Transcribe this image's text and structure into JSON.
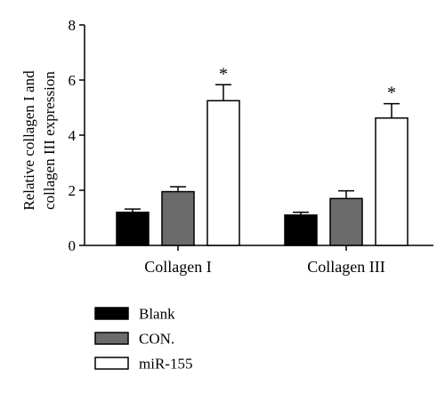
{
  "chart_data": {
    "type": "bar",
    "categories": [
      "Collagen I",
      "Collagen III"
    ],
    "series": [
      {
        "name": "Blank",
        "values": [
          1.2,
          1.1
        ],
        "errors": [
          0.12,
          0.1
        ],
        "color": "#000000"
      },
      {
        "name": "CON.",
        "values": [
          1.95,
          1.7
        ],
        "errors": [
          0.18,
          0.28
        ],
        "color": "#6b6b6b"
      },
      {
        "name": "miR-155",
        "values": [
          5.25,
          4.62
        ],
        "errors": [
          0.58,
          0.52
        ],
        "color": "#ffffff"
      }
    ],
    "significance_marks": [
      "",
      "",
      "*"
    ],
    "ylabel_lines": [
      "Relative collagen I and",
      "collagen III expression"
    ],
    "xlabel": "",
    "ylim": [
      0,
      8
    ],
    "yticks": [
      0,
      2,
      4,
      6,
      8
    ],
    "grid": false,
    "legend_position": "bottom-left"
  }
}
